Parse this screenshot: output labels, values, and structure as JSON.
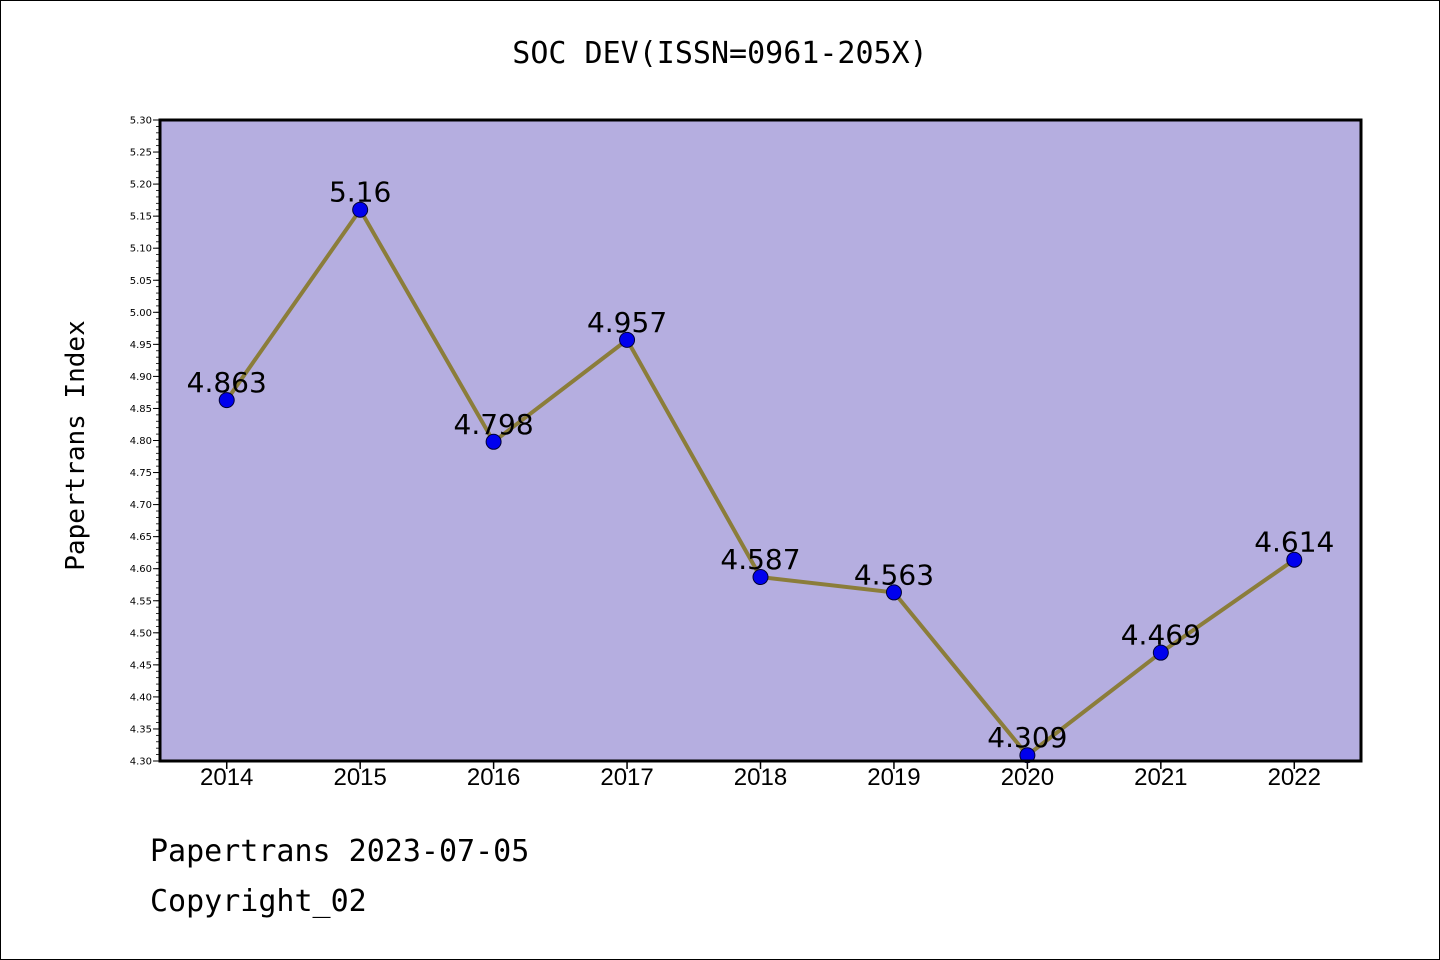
{
  "chart_data": {
    "type": "line",
    "title": "SOC DEV(ISSN=0961-205X)",
    "xlabel": "",
    "ylabel": "Papertrans Index",
    "categories": [
      "2014",
      "2015",
      "2016",
      "2017",
      "2018",
      "2019",
      "2020",
      "2021",
      "2022"
    ],
    "series": [
      {
        "values": [
          4.863,
          5.16,
          4.798,
          4.957,
          4.587,
          4.563,
          4.309,
          4.469,
          4.614
        ],
        "labels": [
          "4.863",
          "5.16",
          "4.798",
          "4.957",
          "4.587",
          "4.563",
          "4.309",
          "4.469",
          "4.614"
        ]
      }
    ],
    "ylim": [
      4.3,
      5.3
    ],
    "y_ticks": [
      "4.30",
      "4.35",
      "4.40",
      "4.45",
      "4.50",
      "4.55",
      "4.60",
      "4.65",
      "4.70",
      "4.75",
      "4.80",
      "4.85",
      "4.90",
      "4.95",
      "5.00",
      "5.05",
      "5.10",
      "5.15",
      "5.20",
      "5.25",
      "5.30"
    ],
    "grid": false,
    "legend": "none",
    "colors": {
      "plot_background": "#b5aee0",
      "line": "#8b7d3a",
      "marker": "#0000ee",
      "axis": "#000000"
    }
  },
  "footer": {
    "date_line": "Papertrans 2023-07-05",
    "copyright_line": "Copyright_02"
  }
}
